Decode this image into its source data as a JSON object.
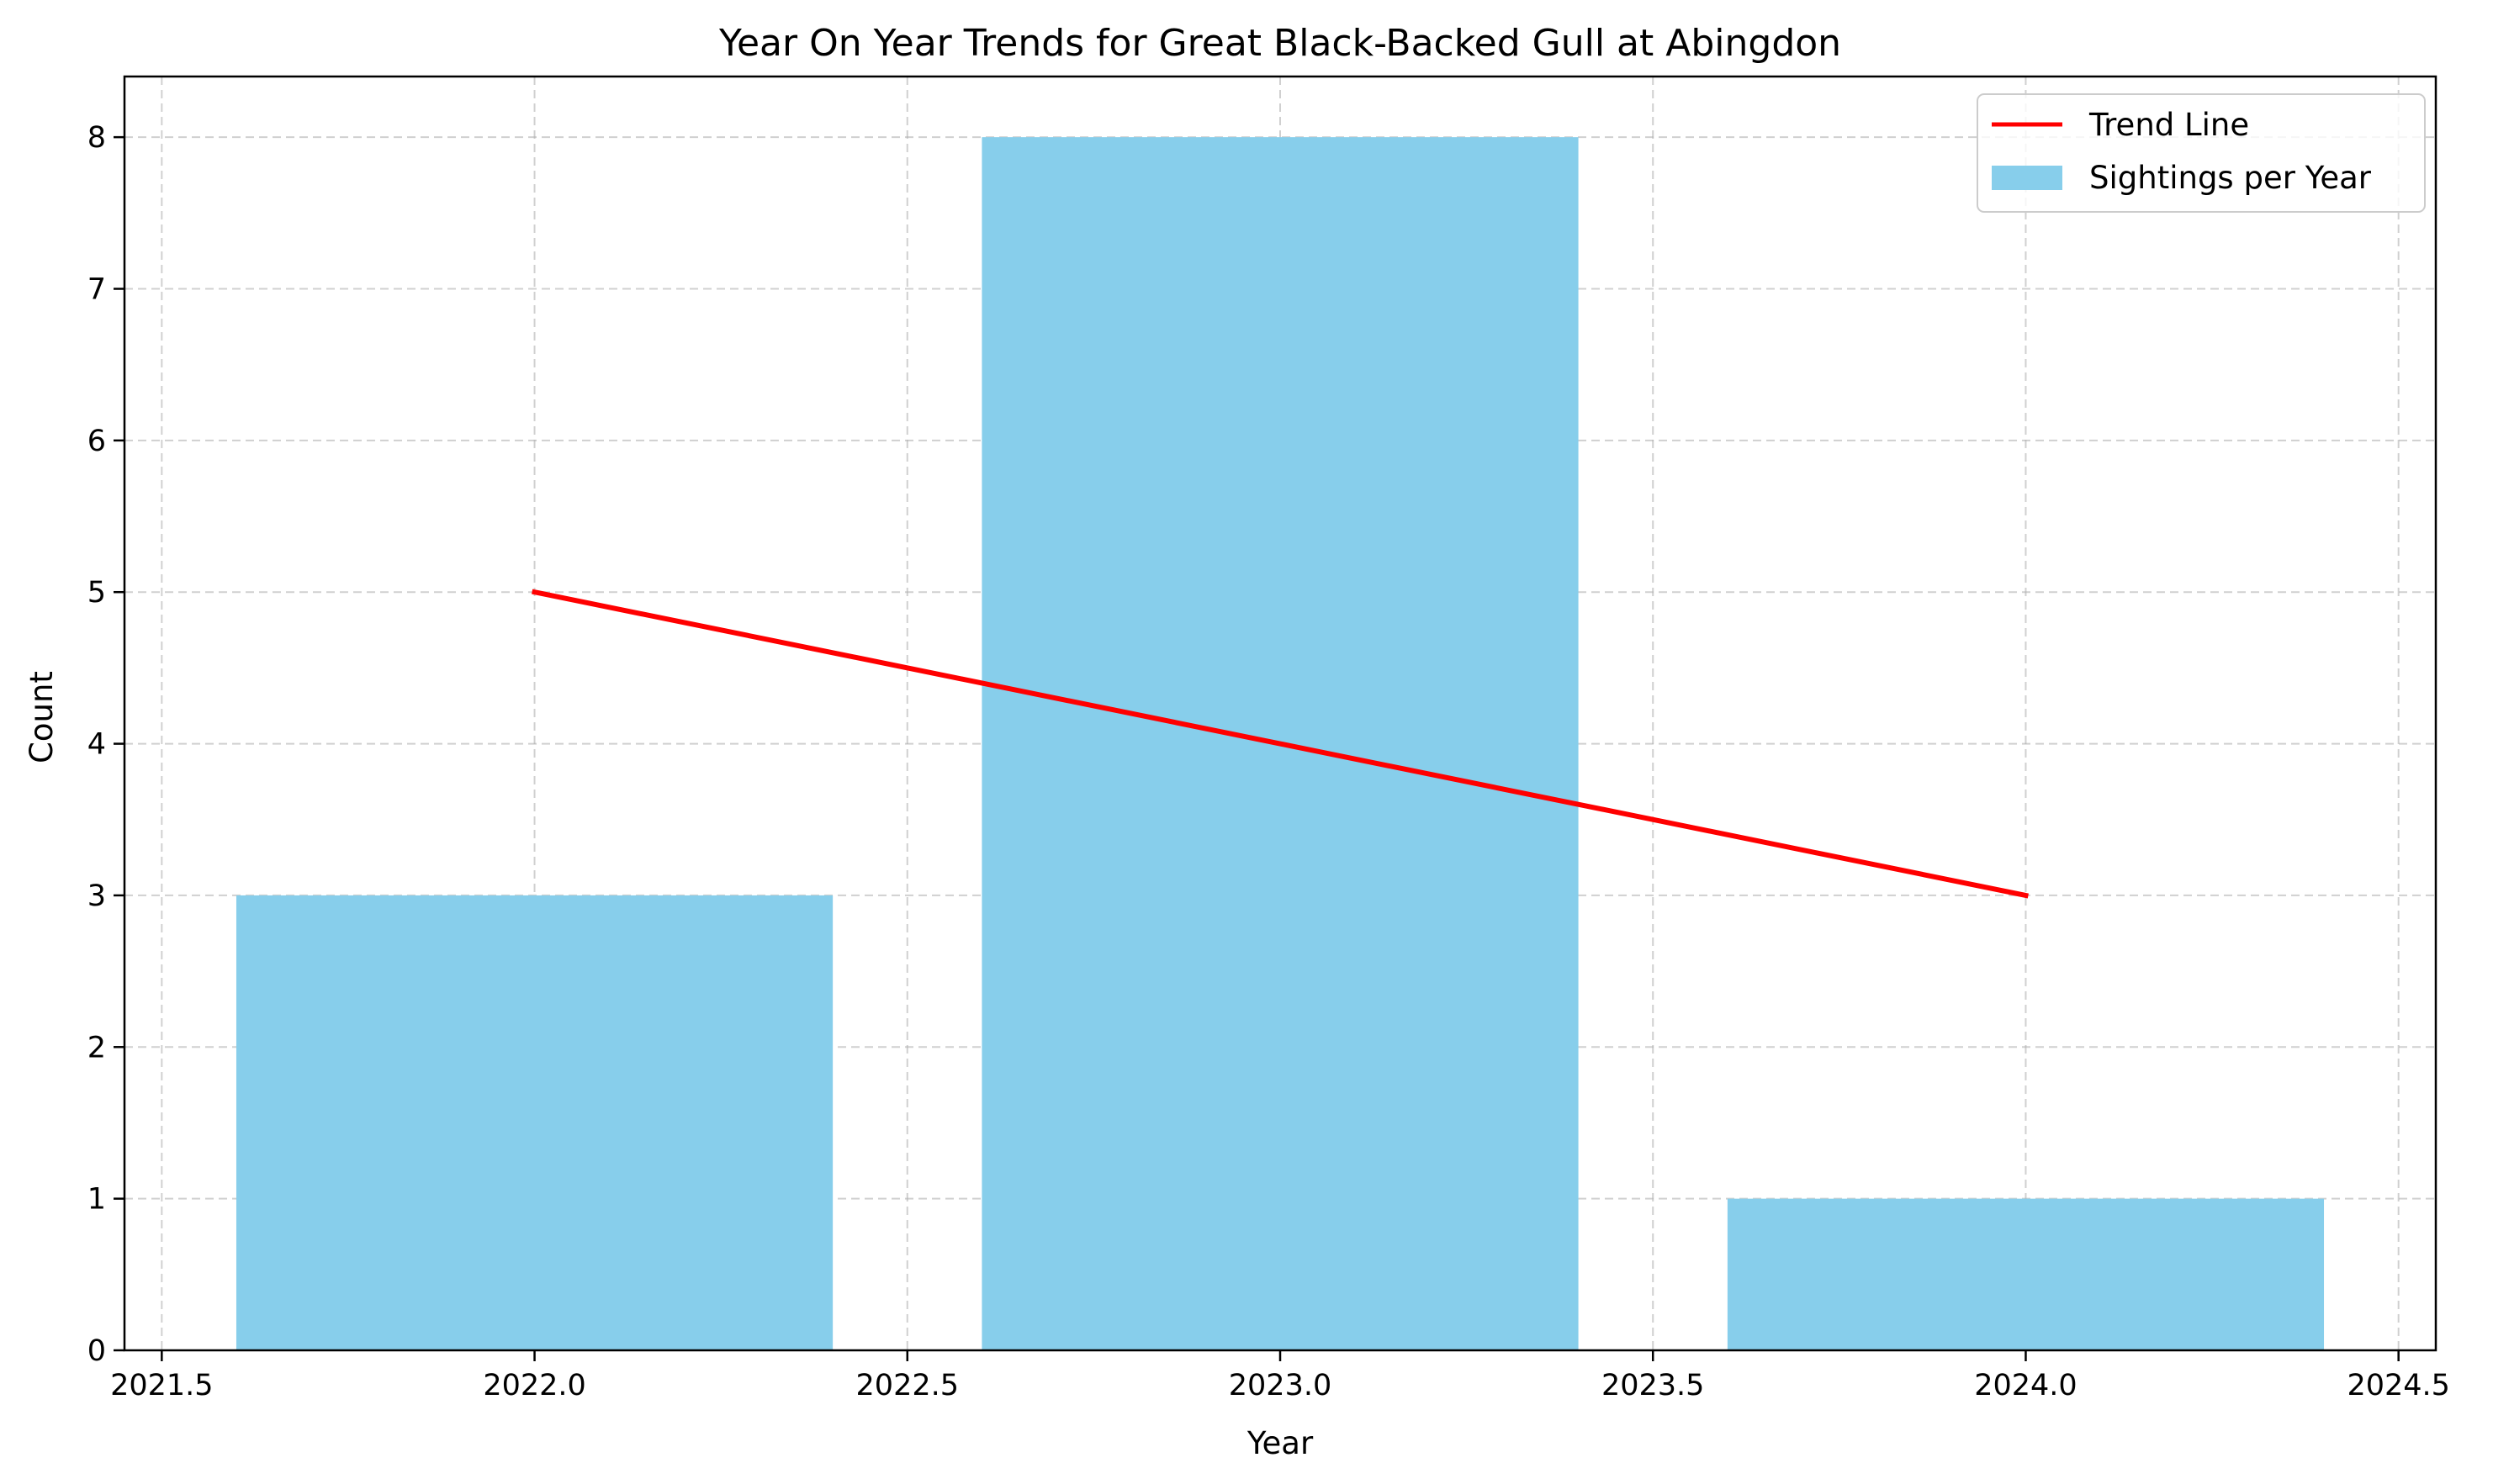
{
  "chart_data": {
    "type": "bar",
    "title": "Year On Year Trends for Great Black-Backed Gull at Abingdon",
    "xlabel": "Year",
    "ylabel": "Count",
    "xlim": [
      2021.45,
      2024.55
    ],
    "ylim": [
      0,
      8.4
    ],
    "x_ticks": [
      2021.5,
      2022.0,
      2022.5,
      2023.0,
      2023.5,
      2024.0,
      2024.5
    ],
    "x_tick_labels": [
      "2021.5",
      "2022.0",
      "2022.5",
      "2023.0",
      "2023.5",
      "2024.0",
      "2024.5"
    ],
    "y_ticks": [
      0,
      1,
      2,
      3,
      4,
      5,
      6,
      7,
      8
    ],
    "y_tick_labels": [
      "0",
      "1",
      "2",
      "3",
      "4",
      "5",
      "6",
      "7",
      "8"
    ],
    "grid": true,
    "legend_position": "top-right",
    "bar_width": 0.8,
    "series": [
      {
        "name": "Sightings per Year",
        "kind": "bar",
        "color": "#87ceeb",
        "x": [
          2022,
          2023,
          2024
        ],
        "values": [
          3,
          8,
          1
        ]
      },
      {
        "name": "Trend Line",
        "kind": "line",
        "color": "#ff0000",
        "x": [
          2022,
          2024
        ],
        "values": [
          5,
          3
        ]
      }
    ]
  }
}
